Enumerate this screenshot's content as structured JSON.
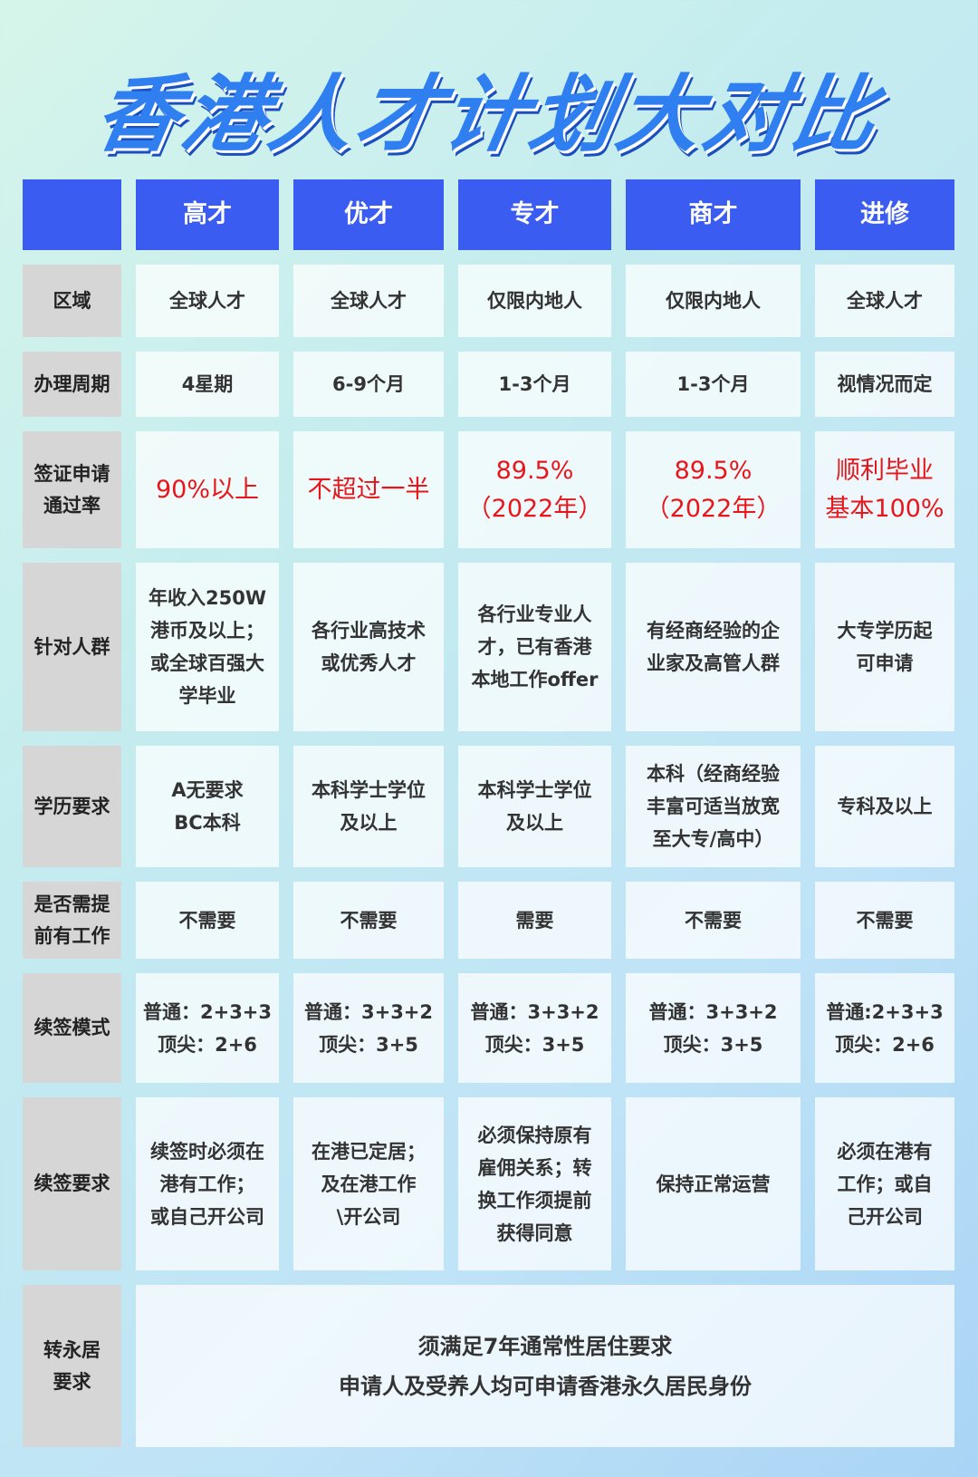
{
  "title": "香港人才计划大对比",
  "columns": [
    "高才",
    "优才",
    "专才",
    "商才",
    "进修"
  ],
  "rows": [
    {
      "label": "区域",
      "values": [
        "全球人才",
        "全球人才",
        "仅限内地人",
        "仅限内地人",
        "全球人才"
      ]
    },
    {
      "label": "办理周期",
      "values": [
        "4星期",
        "6-9个月",
        "1-3个月",
        "1-3个月",
        "视情况而定"
      ]
    },
    {
      "label": "签证申请\n通过率",
      "values": [
        "90%以上",
        "不超过一半",
        "89.5%\n（2022年）",
        "89.5%\n（2022年）",
        "顺利毕业\n基本100%"
      ],
      "highlight_color": "#e8161a"
    },
    {
      "label": "针对人群",
      "values": [
        "年收入250W\n港币及以上；\n或全球百强大\n学毕业",
        "各行业高技术\n或优秀人才",
        "各行业专业人\n才，已有香港\n本地工作offer",
        "有经商经验的企\n业家及高管人群",
        "大专学历起\n可申请"
      ]
    },
    {
      "label": "学历要求",
      "values": [
        "A无要求\nBC本科",
        "本科学士学位\n及以上",
        "本科学士学位\n及以上",
        "本科（经商经验\n丰富可适当放宽\n至大专/高中）",
        "专科及以上"
      ]
    },
    {
      "label": "是否需提\n前有工作",
      "values": [
        "不需要",
        "不需要",
        "需要",
        "不需要",
        "不需要"
      ]
    },
    {
      "label": "续签模式",
      "values": [
        "普通：2+3+3\n顶尖：2+6",
        "普通：3+3+2\n顶尖：3+5",
        "普通：3+3+2\n顶尖：3+5",
        "普通：3+3+2\n顶尖：3+5",
        "普通:2+3+3\n顶尖：2+6"
      ]
    },
    {
      "label": "续签要求",
      "values": [
        "续签时必须在\n港有工作；\n或自己开公司",
        "在港已定居；\n及在港工作\n\\开公司",
        "必须保持原有\n雇佣关系；转\n换工作须提前\n获得同意",
        "保持正常运营",
        "必须在港有\n工作；或自\n己开公司"
      ]
    }
  ],
  "permanent": {
    "label": "转永居\n要求",
    "value": "须满足7年通常性居住要求\n申请人及受养人均可申请香港永久居民身份"
  },
  "colors": {
    "header": "#3b5cf0",
    "label_bg": "#d6d6d6",
    "highlight": "#e8161a",
    "title": "#2f7ff0"
  }
}
